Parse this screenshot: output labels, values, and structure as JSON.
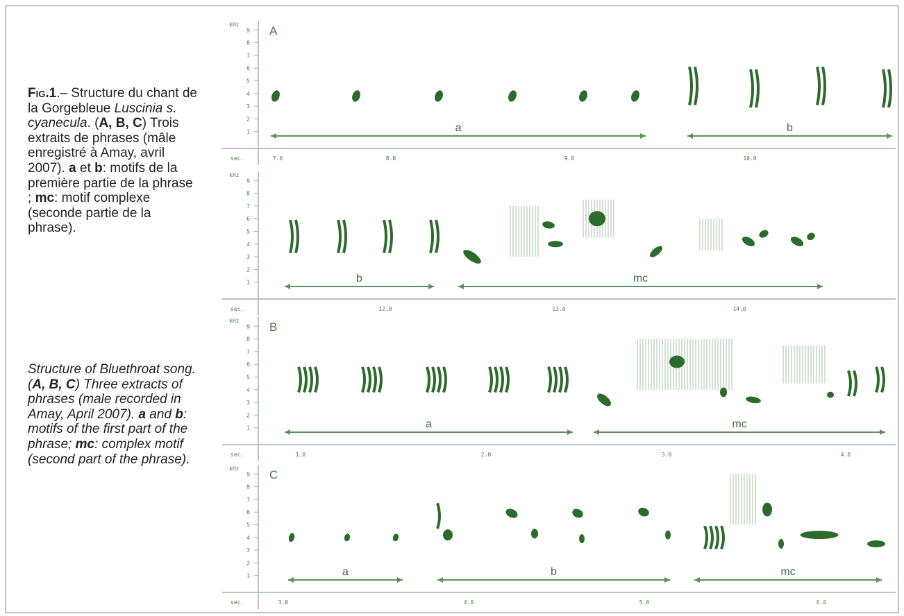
{
  "caption": {
    "fr": [
      "Fig.1",
      ".– Structure du chant de la Gorgebleue ",
      "Luscinia s. cyanecula",
      ". (",
      "A, B, C",
      ") Trois extraits de phrases (mâle enregistré à Amay, avril 2007). ",
      "a",
      " et ",
      "b",
      ": motifs de la première partie de la phrase ; ",
      "mc",
      ": motif complexe (seconde partie de la phrase)."
    ],
    "en": [
      "Structure of Bluethroat song. (",
      "A, B, C",
      ") Three extracts of phrases (male recorded in Amay, April 2007). ",
      "a",
      " and ",
      "b",
      ": motifs of the first part of the phrase; ",
      "mc",
      ": complex motif (second part of the phrase)."
    ]
  },
  "axis": {
    "freq_unit": "kHz",
    "time_unit": "sec.",
    "freq_ticks": [
      "1",
      "2",
      "3",
      "4",
      "5",
      "6",
      "7",
      "8",
      "9"
    ]
  },
  "rows": [
    {
      "panel": "A",
      "times": [
        "7.0",
        "8.0",
        "9.0",
        "10.0"
      ],
      "motifs": [
        "a",
        "b"
      ]
    },
    {
      "times": [
        "12.0",
        "13.0",
        "14.0"
      ],
      "motifs": [
        "b",
        "mc"
      ]
    },
    {
      "panel": "B",
      "times": [
        "1.0",
        "2.0",
        "3.0",
        "4.0"
      ],
      "motifs": [
        "a",
        "mc"
      ]
    },
    {
      "panel": "C",
      "times": [
        "3.0",
        "4.0",
        "5.0",
        "6.0"
      ],
      "motifs": [
        "a",
        "b",
        "mc"
      ]
    }
  ]
}
